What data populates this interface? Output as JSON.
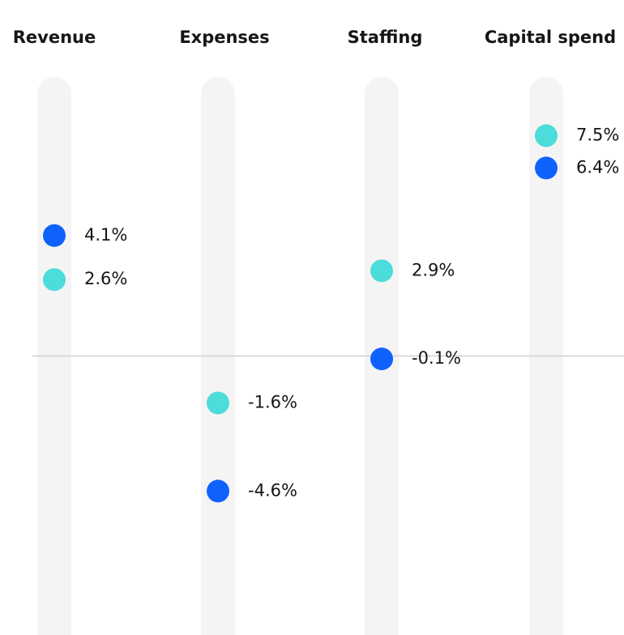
{
  "chart_data": {
    "type": "dot",
    "categories": [
      "Revenue",
      "Expenses",
      "Staffing",
      "Capital spend"
    ],
    "series": [
      {
        "color": "#4cdcda",
        "values": [
          2.6,
          -1.6,
          2.9,
          7.5
        ],
        "value_labels": [
          "2.6%",
          "-1.6%",
          "2.9%",
          "7.5%"
        ]
      },
      {
        "color": "#0f62fe",
        "values": [
          4.1,
          -4.6,
          -0.1,
          6.4
        ],
        "value_labels": [
          "4.1%",
          "-4.6%",
          "-0.1%",
          "6.4%"
        ]
      }
    ],
    "ylim": [
      -9.5,
      9.5
    ]
  }
}
